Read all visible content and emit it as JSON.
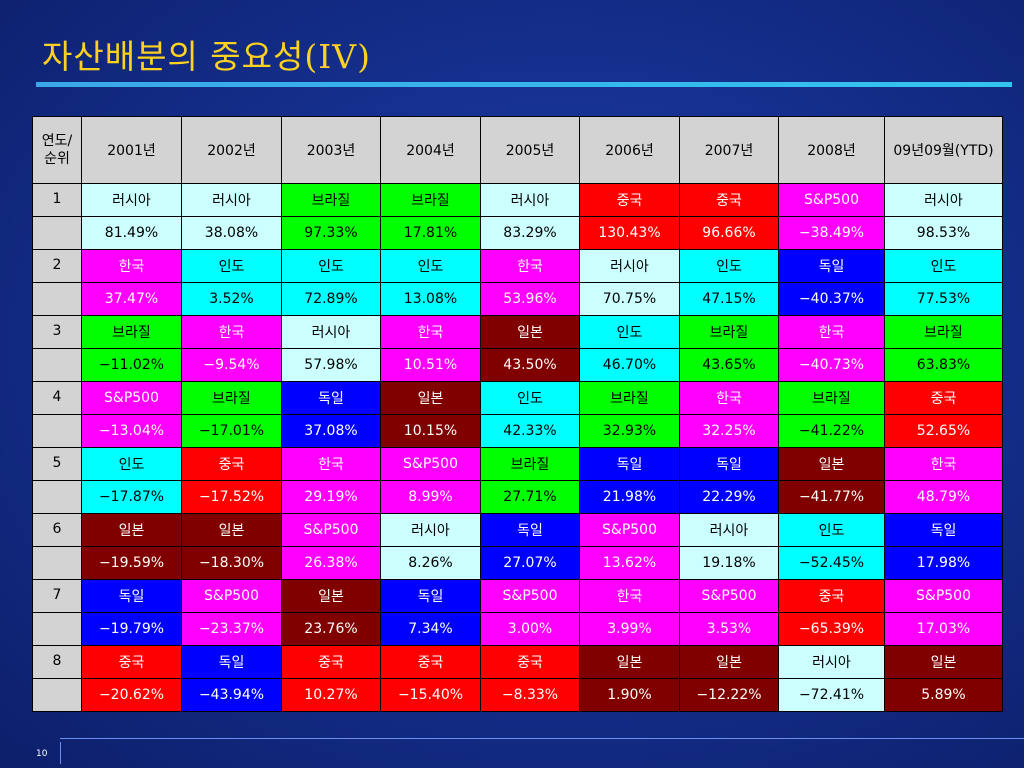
{
  "title": "자산배분의 중요성(IV)",
  "page_number": "10",
  "table": {
    "corner": [
      "연도/",
      "순위"
    ],
    "years": [
      "2001년",
      "2002년",
      "2003년",
      "2004년",
      "2005년",
      "2006년",
      "2007년",
      "2008년",
      "09년09월(YTD)"
    ],
    "markets": {
      "러시아": {
        "bg": "#ccffff",
        "fg": "#000000"
      },
      "한국": {
        "bg": "#ff00ff",
        "fg": "#ffffff"
      },
      "브라질": {
        "bg": "#00ff00",
        "fg": "#000000"
      },
      "S&P500": {
        "bg": "#ff00ff",
        "fg": "#ffffff"
      },
      "인도": {
        "bg": "#00ffff",
        "fg": "#000000"
      },
      "일본": {
        "bg": "#800000",
        "fg": "#ffffff"
      },
      "독일": {
        "bg": "#0000ff",
        "fg": "#ffffff"
      },
      "중국": {
        "bg": "#ff0000",
        "fg": "#ffffff"
      }
    },
    "ranks": [
      {
        "rank": "1",
        "cells": [
          [
            "러시아",
            "81.49%"
          ],
          [
            "러시아",
            "38.08%"
          ],
          [
            "브라질",
            "97.33%"
          ],
          [
            "브라질",
            "17.81%"
          ],
          [
            "러시아",
            "83.29%"
          ],
          [
            "중국",
            "130.43%"
          ],
          [
            "중국",
            "96.66%"
          ],
          [
            "S&P500",
            "−38.49%"
          ],
          [
            "러시아",
            "98.53%"
          ]
        ]
      },
      {
        "rank": "2",
        "cells": [
          [
            "한국",
            "37.47%"
          ],
          [
            "인도",
            "3.52%"
          ],
          [
            "인도",
            "72.89%"
          ],
          [
            "인도",
            "13.08%"
          ],
          [
            "한국",
            "53.96%"
          ],
          [
            "러시아",
            "70.75%"
          ],
          [
            "인도",
            "47.15%"
          ],
          [
            "독일",
            "−40.37%"
          ],
          [
            "인도",
            "77.53%"
          ]
        ]
      },
      {
        "rank": "3",
        "cells": [
          [
            "브라질",
            "−11.02%"
          ],
          [
            "한국",
            "−9.54%"
          ],
          [
            "러시아",
            "57.98%"
          ],
          [
            "한국",
            "10.51%"
          ],
          [
            "일본",
            "43.50%"
          ],
          [
            "인도",
            "46.70%"
          ],
          [
            "브라질",
            "43.65%"
          ],
          [
            "한국",
            "−40.73%"
          ],
          [
            "브라질",
            "63.83%"
          ]
        ]
      },
      {
        "rank": "4",
        "cells": [
          [
            "S&P500",
            "−13.04%"
          ],
          [
            "브라질",
            "−17.01%"
          ],
          [
            "독일",
            "37.08%"
          ],
          [
            "일본",
            "10.15%"
          ],
          [
            "인도",
            "42.33%"
          ],
          [
            "브라질",
            "32.93%"
          ],
          [
            "한국",
            "32.25%"
          ],
          [
            "브라질",
            "−41.22%"
          ],
          [
            "중국",
            "52.65%"
          ]
        ]
      },
      {
        "rank": "5",
        "cells": [
          [
            "인도",
            "−17.87%"
          ],
          [
            "중국",
            "−17.52%"
          ],
          [
            "한국",
            "29.19%"
          ],
          [
            "S&P500",
            "8.99%"
          ],
          [
            "브라질",
            "27.71%"
          ],
          [
            "독일",
            "21.98%"
          ],
          [
            "독일",
            "22.29%"
          ],
          [
            "일본",
            "−41.77%"
          ],
          [
            "한국",
            "48.79%"
          ]
        ]
      },
      {
        "rank": "6",
        "cells": [
          [
            "일본",
            "−19.59%"
          ],
          [
            "일본",
            "−18.30%"
          ],
          [
            "S&P500",
            "26.38%"
          ],
          [
            "러시아",
            "8.26%"
          ],
          [
            "독일",
            "27.07%"
          ],
          [
            "S&P500",
            "13.62%"
          ],
          [
            "러시아",
            "19.18%"
          ],
          [
            "인도",
            "−52.45%"
          ],
          [
            "독일",
            "17.98%"
          ]
        ]
      },
      {
        "rank": "7",
        "cells": [
          [
            "독일",
            "−19.79%"
          ],
          [
            "S&P500",
            "−23.37%"
          ],
          [
            "일본",
            "23.76%"
          ],
          [
            "독일",
            "7.34%"
          ],
          [
            "S&P500",
            "3.00%"
          ],
          [
            "한국",
            "3.99%"
          ],
          [
            "S&P500",
            "3.53%"
          ],
          [
            "중국",
            "−65.39%"
          ],
          [
            "S&P500",
            "17.03%"
          ]
        ]
      },
      {
        "rank": "8",
        "cells": [
          [
            "중국",
            "−20.62%"
          ],
          [
            "독일",
            "−43.94%"
          ],
          [
            "중국",
            "10.27%"
          ],
          [
            "중국",
            "−15.40%"
          ],
          [
            "중국",
            "−8.33%"
          ],
          [
            "일본",
            "1.90%"
          ],
          [
            "일본",
            "−12.22%"
          ],
          [
            "러시아",
            "−72.41%"
          ],
          [
            "일본",
            "5.89%"
          ]
        ]
      }
    ]
  }
}
